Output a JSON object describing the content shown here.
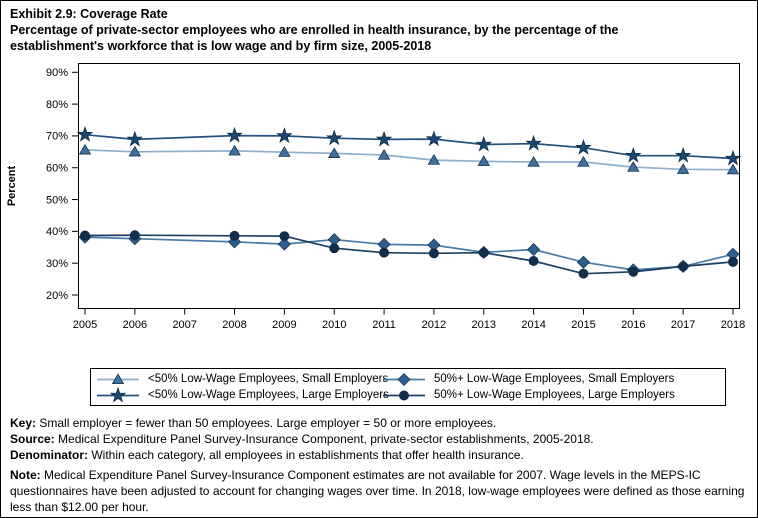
{
  "title": {
    "exhibit": "Exhibit 2.9: Coverage Rate",
    "subtitle": "Percentage of private-sector employees who are enrolled in health insurance, by the percentage of the establishment's workforce that is low wage and by firm size, 2005-2018"
  },
  "chart_data": {
    "type": "line",
    "title": "Coverage Rate",
    "xlabel": "",
    "ylabel": "Percent",
    "ylim": [
      20,
      90
    ],
    "yticks": [
      20,
      30,
      40,
      50,
      60,
      70,
      80,
      90
    ],
    "ytick_suffix": "%",
    "grid": false,
    "legend_position": "bottom",
    "x": [
      2005,
      2006,
      2007,
      2008,
      2009,
      2010,
      2011,
      2012,
      2013,
      2014,
      2015,
      2016,
      2017,
      2018
    ],
    "missing_x": [
      2007
    ],
    "series": [
      {
        "name": "<50% Low-Wage Employees, Small Employers",
        "marker": "triangle",
        "marker_color": "#3E6F9F",
        "line_color": "#8FAECB",
        "values": [
          65.6,
          65.0,
          null,
          65.3,
          64.9,
          64.5,
          64.0,
          62.4,
          62.0,
          61.8,
          61.8,
          60.2,
          59.5,
          59.4
        ]
      },
      {
        "name": "<50% Low-Wage Employees, Large Employers",
        "marker": "star",
        "marker_color": "#1B4771",
        "line_color": "#24527F",
        "values": [
          70.4,
          68.9,
          null,
          70.1,
          70.0,
          69.3,
          68.9,
          69.0,
          67.3,
          67.6,
          66.3,
          63.8,
          63.8,
          62.9
        ]
      },
      {
        "name": "50%+ Low-Wage Employees, Small Employers",
        "marker": "diamond",
        "marker_color": "#2D5F8E",
        "line_color": "#4A7BA6",
        "values": [
          38.2,
          37.7,
          null,
          36.7,
          36.0,
          37.4,
          35.9,
          35.7,
          33.4,
          34.3,
          30.3,
          27.9,
          29.0,
          32.8
        ]
      },
      {
        "name": "50%+ Low-Wage Employees, Large Employers",
        "marker": "circle",
        "marker_color": "#132E4C",
        "line_color": "#1F3F63",
        "values": [
          38.7,
          38.8,
          null,
          38.6,
          38.5,
          34.7,
          33.3,
          33.1,
          33.3,
          30.7,
          26.7,
          27.3,
          29.0,
          30.4
        ]
      }
    ]
  },
  "legend": {
    "items": [
      {
        "marker": "triangle",
        "series_index": 0,
        "label": "<50% Low-Wage Employees, Small Employers"
      },
      {
        "marker": "diamond",
        "series_index": 2,
        "label": "50%+ Low-Wage Employees, Small Employers"
      },
      {
        "marker": "star",
        "series_index": 1,
        "label": "<50% Low-Wage Employees, Large Employers"
      },
      {
        "marker": "circle",
        "series_index": 3,
        "label": "50%+ Low-Wage Employees, Large Employers"
      }
    ]
  },
  "footnotes": [
    {
      "label": "Key:",
      "text": " Small employer = fewer than 50 employees. Large employer = 50 or more employees."
    },
    {
      "label": "Source:",
      "text": " Medical Expenditure Panel Survey-Insurance Component, private-sector establishments, 2005-2018."
    },
    {
      "label": "Denominator:",
      "text": " Within each category, all employees in establishments that offer health insurance."
    },
    {
      "label": "Note:",
      "text": " Medical Expenditure Panel Survey-Insurance Component estimates are not available for 2007. Wage levels in the MEPS-IC questionnaires have been adjusted to account for changing wages over time. In 2018, low-wage employees were defined as those earning less than $12.00 per hour."
    }
  ]
}
